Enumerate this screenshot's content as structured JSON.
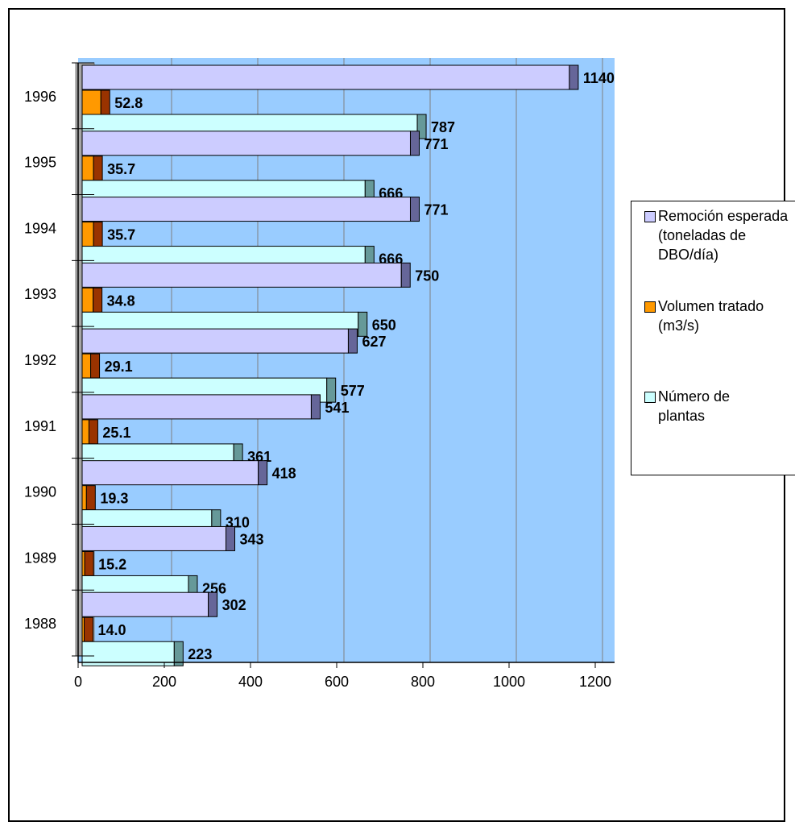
{
  "chart_data": {
    "type": "bar",
    "orientation": "horizontal",
    "categories": [
      "1996",
      "1995",
      "1994",
      "1993",
      "1992",
      "1991",
      "1990",
      "1989",
      "1988"
    ],
    "series": [
      {
        "name": "Remoción esperada (toneladas de DBO/día)",
        "color": "#ccccff",
        "values": [
          1140,
          771,
          771,
          750,
          627,
          541,
          418,
          343,
          302
        ],
        "labels": [
          "1140",
          "771",
          "771",
          "750",
          "627",
          "541",
          "418",
          "343",
          "302"
        ]
      },
      {
        "name": "Volumen tratado (m3/s)",
        "color": "#ff9900",
        "values": [
          52.8,
          35.7,
          35.7,
          34.8,
          29.1,
          25.1,
          19.3,
          15.2,
          14.0
        ],
        "labels": [
          "52.8",
          "35.7",
          "35.7",
          "34.8",
          "29.1",
          "25.1",
          "19.3",
          "15.2",
          "14.0"
        ]
      },
      {
        "name": "Número de plantas",
        "color": "#ccffff",
        "values": [
          787,
          666,
          666,
          650,
          577,
          361,
          310,
          256,
          223
        ],
        "labels": [
          "787",
          "666",
          "666",
          "650",
          "577",
          "361",
          "310",
          "256",
          "223"
        ]
      }
    ],
    "xlim": [
      0,
      1200
    ],
    "xticks": [
      "0",
      "200",
      "400",
      "600",
      "800",
      "1000",
      "1200"
    ],
    "grid": true,
    "plot_background": "#99ccff",
    "legend_position": "right",
    "style": "3d"
  }
}
